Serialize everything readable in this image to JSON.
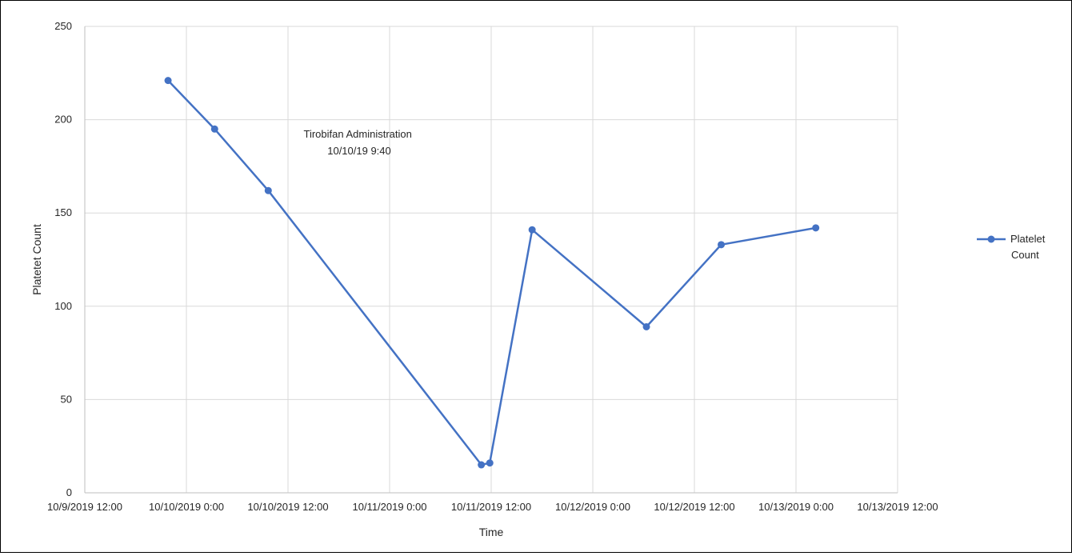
{
  "chart_data": {
    "type": "line",
    "title": "",
    "xlabel": "Time",
    "ylabel": "Platetet Count",
    "x_type": "datetime",
    "xlim": [
      "10/9/2019 12:00",
      "10/13/2019 12:00"
    ],
    "ylim": [
      0,
      250
    ],
    "y_ticks": [
      0,
      50,
      100,
      150,
      200,
      250
    ],
    "x_ticks": [
      {
        "value": "2019-10-09T12:00",
        "label": "10/9/2019 12:00"
      },
      {
        "value": "2019-10-10T00:00",
        "label": "10/10/2019 0:00"
      },
      {
        "value": "2019-10-10T12:00",
        "label": "10/10/2019 12:00"
      },
      {
        "value": "2019-10-11T00:00",
        "label": "10/11/2019 0:00"
      },
      {
        "value": "2019-10-11T12:00",
        "label": "10/11/2019 12:00"
      },
      {
        "value": "2019-10-12T00:00",
        "label": "10/12/2019 0:00"
      },
      {
        "value": "2019-10-12T12:00",
        "label": "10/12/2019 12:00"
      },
      {
        "value": "2019-10-13T00:00",
        "label": "10/13/2019 0:00"
      },
      {
        "value": "2019-10-13T12:00",
        "label": "10/13/2019 12:00"
      }
    ],
    "grid": true,
    "legend_position": "right",
    "series": [
      {
        "name": "Platelet Count",
        "color": "#4472c4",
        "points": [
          {
            "x": "2019-10-09T21:50",
            "y": 221
          },
          {
            "x": "2019-10-10T03:20",
            "y": 195
          },
          {
            "x": "2019-10-10T09:40",
            "y": 162
          },
          {
            "x": "2019-10-11T10:50",
            "y": 15
          },
          {
            "x": "2019-10-11T11:50",
            "y": 16
          },
          {
            "x": "2019-10-11T16:50",
            "y": 141
          },
          {
            "x": "2019-10-12T06:20",
            "y": 89
          },
          {
            "x": "2019-10-12T15:10",
            "y": 133
          },
          {
            "x": "2019-10-13T02:20",
            "y": 142
          }
        ]
      }
    ],
    "annotations": [
      {
        "lines": [
          "Tirobifan Administration",
          "10/10/19  9:40"
        ]
      }
    ]
  }
}
